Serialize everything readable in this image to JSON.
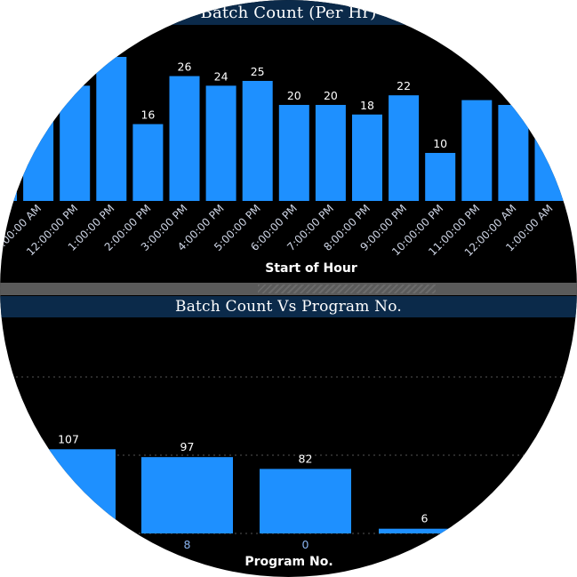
{
  "colors": {
    "bar": "#1e90ff",
    "background": "#000000",
    "title_bar": "#0b2a4a",
    "grid": "#555555"
  },
  "chart_data": [
    {
      "type": "bar",
      "title": "Batch Count (Per Hr)",
      "xlabel": "Start of Hour",
      "ylabel": "",
      "categories": [
        "10:00:00 AM",
        "11:00:00 AM",
        "12:00:00 PM",
        "1:00:00 PM",
        "2:00:00 PM",
        "3:00:00 PM",
        "4:00:00 PM",
        "5:00:00 PM",
        "6:00:00 PM",
        "7:00:00 PM",
        "8:00:00 PM",
        "9:00:00 PM",
        "10:00:00 PM",
        "11:00:00 PM",
        "12:00:00 AM",
        "1:00:00 AM"
      ],
      "values": [
        20,
        23,
        24,
        30,
        16,
        26,
        24,
        25,
        20,
        20,
        18,
        22,
        10,
        21,
        20,
        20
      ],
      "data_labels": [
        "",
        "",
        "24",
        "30",
        "16",
        "26",
        "24",
        "25",
        "20",
        "20",
        "18",
        "22",
        "10",
        "",
        "",
        ""
      ],
      "tick_labels": [
        "00:00 AM",
        "11:00:00 AM",
        "12:00:00 PM",
        "1:00:00 PM",
        "2:00:00 PM",
        "3:00:00 PM",
        "4:00:00 PM",
        "5:00:00 PM",
        "6:00:00 PM",
        "7:00:00 PM",
        "8:00:00 PM",
        "9:00:00 PM",
        "10:00:00 PM",
        "11:00:00 PM",
        "12:00:00 AM",
        "1:00:00 AM"
      ],
      "ylim": [
        0,
        30
      ],
      "grid": false
    },
    {
      "type": "bar",
      "title": "Batch Count Vs Program No.",
      "xlabel": "Program No.",
      "ylabel": "",
      "categories": [
        "",
        "8",
        "0",
        ""
      ],
      "values": [
        107,
        97,
        82,
        6
      ],
      "data_labels": [
        "107",
        "97",
        "82",
        "6"
      ],
      "ylim": [
        0,
        107
      ],
      "grid": true
    }
  ]
}
